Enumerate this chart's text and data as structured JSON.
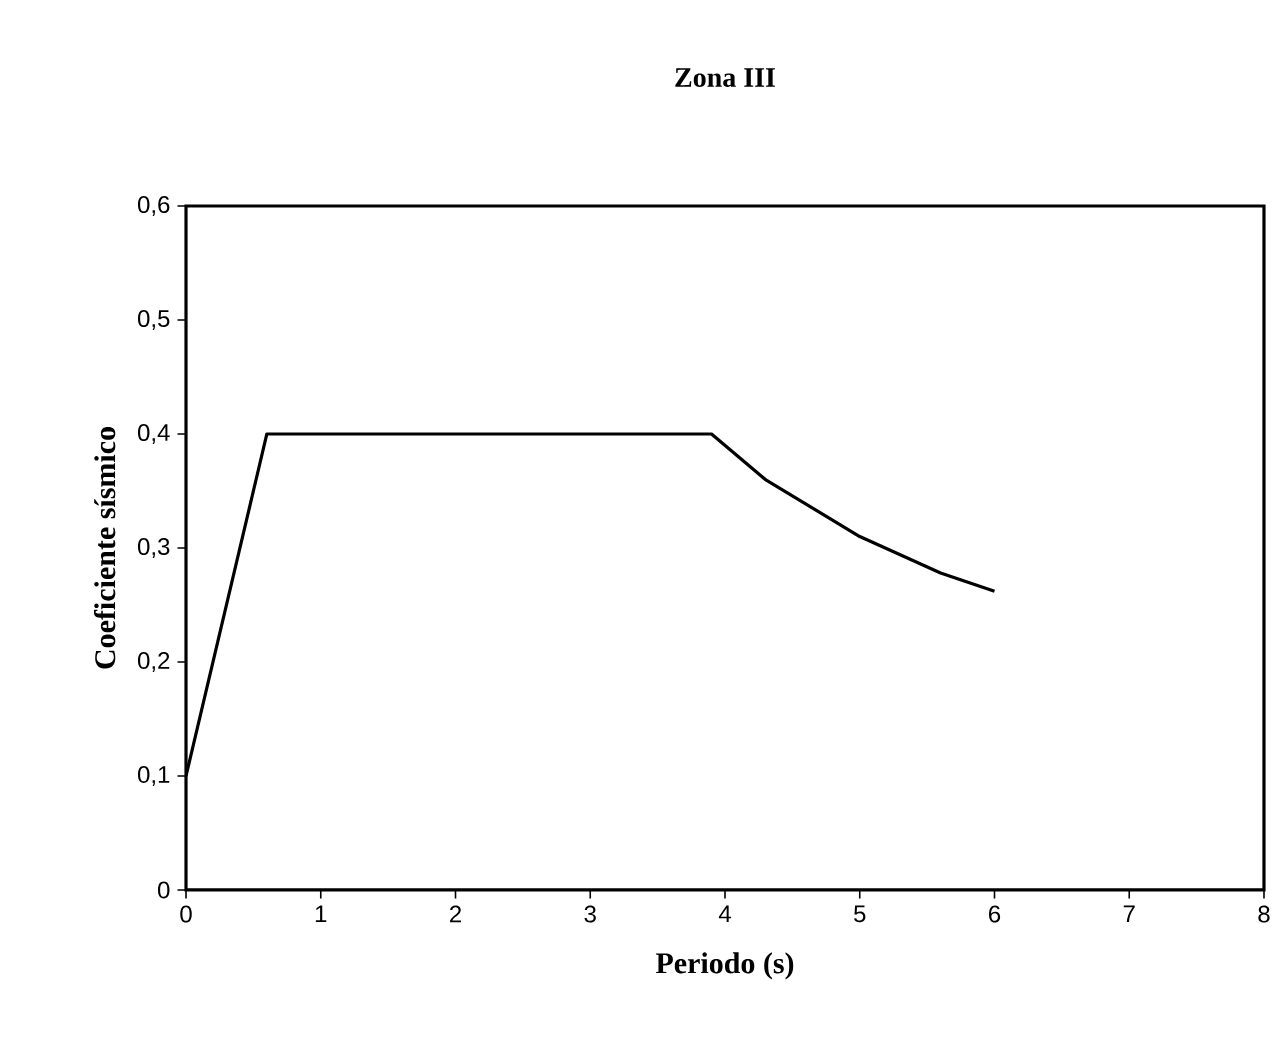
{
  "chart_data": {
    "type": "line",
    "title": "Zona III",
    "xlabel": "Periodo (s)",
    "ylabel": "Coeficiente sísmico",
    "x": [
      0,
      0.6,
      3.9,
      4.3,
      5.0,
      5.6,
      6.0
    ],
    "series": [
      {
        "color": "#000000",
        "values": [
          0.1,
          0.4,
          0.4,
          0.36,
          0.31,
          0.278,
          0.262
        ]
      }
    ],
    "xlim": [
      0,
      8
    ],
    "xticks": [
      0,
      1,
      2,
      3,
      4,
      5,
      6,
      7,
      8
    ],
    "ylim": [
      0,
      0.6
    ],
    "yticks": [
      {
        "value": 0,
        "label": "0"
      },
      {
        "value": 0.1,
        "label": "0,1"
      },
      {
        "value": 0.2,
        "label": "0,2"
      },
      {
        "value": 0.3,
        "label": "0,3"
      },
      {
        "value": 0.4,
        "label": "0,4"
      },
      {
        "value": 0.5,
        "label": "0,5"
      },
      {
        "value": 0.6,
        "label": "0,6"
      }
    ],
    "grid": false,
    "marker": "none",
    "line_style": "solid"
  }
}
